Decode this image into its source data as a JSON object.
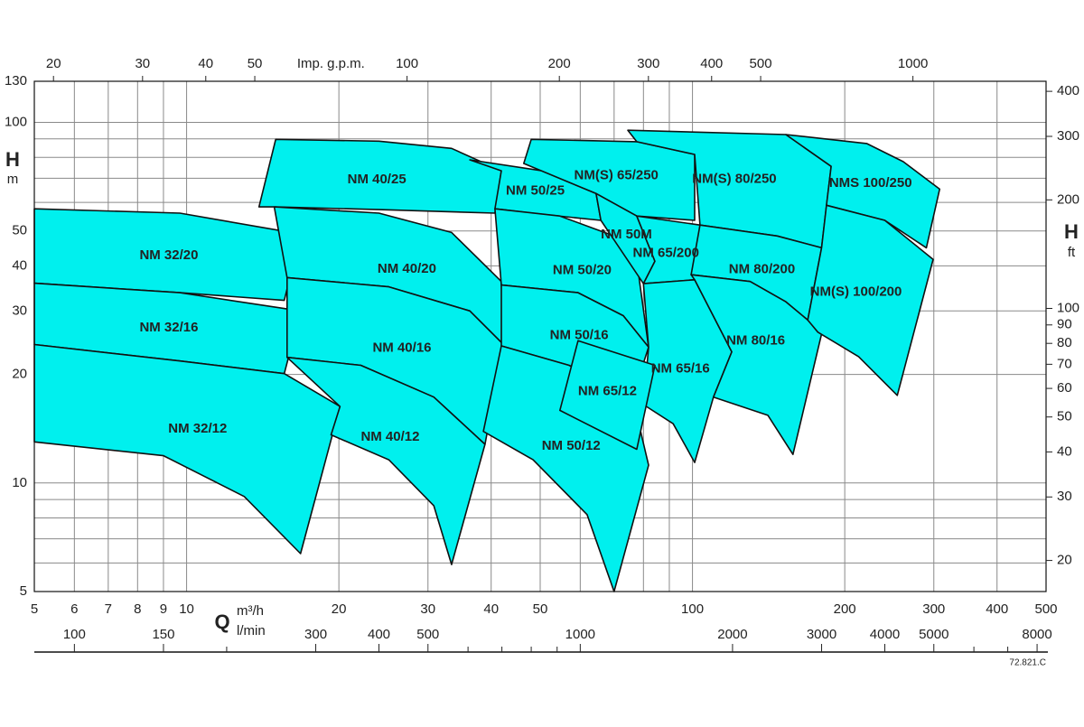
{
  "chart_data": {
    "type": "region",
    "x_title": "Q",
    "x_unit": "m³/h",
    "x2_unit": "l/min",
    "x3_title": "Imp. g.p.m.",
    "y_title": "H",
    "y_unit": "m",
    "y2_title": "H",
    "y2_unit": "ft",
    "code": "72.821.C",
    "xscale": "log",
    "yscale": "log",
    "grid": true,
    "color": "#00f0ee",
    "xlim": [
      5,
      500
    ],
    "xticks": [
      5,
      6,
      7,
      8,
      9,
      10,
      20,
      30,
      40,
      50,
      100,
      200,
      300,
      400,
      500
    ],
    "xminor": [
      60,
      70,
      80,
      90
    ],
    "ylim": [
      5,
      130
    ],
    "yticks": [
      5,
      10,
      20,
      30,
      40,
      50,
      100,
      130
    ],
    "yminor": [
      6,
      7,
      8,
      9,
      60,
      70,
      80,
      90
    ],
    "x2lim": [
      83.33,
      8333.3
    ],
    "x2ticks": [
      100,
      150,
      300,
      400,
      500,
      1000,
      2000,
      3000,
      4000,
      5000,
      8000
    ],
    "x2minor": [
      200,
      600,
      700,
      800,
      900,
      6000,
      7000
    ],
    "x3lim": [
      18.33,
      1833.1
    ],
    "x3ticks": [
      20,
      30,
      40,
      50,
      100,
      200,
      300,
      400,
      500,
      1000
    ],
    "y2lim": [
      16.4,
      426.5
    ],
    "y2ticks": [
      20,
      30,
      40,
      50,
      60,
      70,
      80,
      90,
      100,
      200,
      300,
      400
    ],
    "series": [
      {
        "name": "NM 32/20",
        "q": [
          5,
          9.7,
          16.8,
          15.6,
          9.7,
          5
        ],
        "h": [
          57.6,
          56,
          49,
          32.1,
          33.7,
          35.8
        ]
      },
      {
        "name": "NM 32/16",
        "q": [
          5,
          9.7,
          16.8,
          15.6,
          9.7,
          5
        ],
        "h": [
          35.8,
          33.7,
          30,
          20.1,
          21.8,
          24.2
        ]
      },
      {
        "name": "NM 32/12",
        "q": [
          5,
          9.7,
          15.6,
          20.1,
          16.8,
          13,
          9,
          5
        ],
        "h": [
          24.2,
          21.8,
          20.1,
          16.3,
          6.37,
          9.17,
          11.9,
          13
        ]
      },
      {
        "name": "NM 40/25",
        "q": [
          15,
          24,
          33.4,
          41.9,
          40.7,
          24,
          14.9,
          13.9
        ],
        "h": [
          89.7,
          88.7,
          84.7,
          73.4,
          56,
          57.3,
          58.3,
          58.3
        ]
      },
      {
        "name": "NM 40/20",
        "q": [
          14.9,
          24,
          33.4,
          41.9,
          42.3,
          36.3,
          25.1,
          15.8
        ],
        "h": [
          58.3,
          56,
          49.5,
          36.2,
          24.2,
          30,
          35,
          37.1
        ]
      },
      {
        "name": "NM 40/16",
        "q": [
          15.8,
          25.1,
          36.3,
          42.3,
          38.9,
          30.8,
          22.1,
          15.8
        ],
        "h": [
          37.1,
          35,
          30,
          24.2,
          12.8,
          17.3,
          21.2,
          22.3
        ]
      },
      {
        "name": "NM 40/12",
        "q": [
          15.8,
          22.1,
          30.8,
          38.9,
          33.4,
          30.8,
          25.1,
          19.3,
          20.1
        ],
        "h": [
          22.3,
          21.2,
          17.3,
          12.8,
          5.94,
          8.65,
          11.6,
          13.6,
          16.3
        ]
      },
      {
        "name": "NM 50/25",
        "q": [
          36.3,
          50.4,
          64.5,
          65.9,
          50.4,
          40.7,
          41.9
        ],
        "h": [
          78.7,
          73.4,
          63.5,
          53.5,
          55.6,
          57.6,
          73.4
        ]
      },
      {
        "name": "NM 50/20",
        "q": [
          40.7,
          54.7,
          70,
          77.6,
          81.9,
          73,
          59.4,
          41.9
        ],
        "h": [
          57.6,
          55,
          48.4,
          41.2,
          23.8,
          29.1,
          33.7,
          35.4
        ]
      },
      {
        "name": "NM 50/16",
        "q": [
          41.9,
          59.4,
          73,
          81.9,
          76.1,
          57,
          41.9
        ],
        "h": [
          35.4,
          33.7,
          29.1,
          23.8,
          17.3,
          21.2,
          24
        ]
      },
      {
        "name": "NM 50/12",
        "q": [
          41.9,
          57,
          76.1,
          81.9,
          70,
          61.9,
          48.4,
          38.6
        ],
        "h": [
          24,
          21.2,
          17.3,
          11.2,
          5,
          8.17,
          11.6,
          13.9
        ]
      },
      {
        "name": "NM(S) 65/250",
        "q": [
          48,
          77.6,
          101,
          101,
          77.6,
          64.5,
          46.4
        ],
        "h": [
          89.7,
          88.4,
          81.5,
          53.5,
          55,
          63.5,
          76.9
        ]
      },
      {
        "name": "NM 50M",
        "q": [
          64.5,
          77.6,
          84.3,
          80,
          65.9
        ],
        "h": [
          63.5,
          55,
          41.2,
          35.7,
          53.5
        ]
      },
      {
        "name": "NM 65/200",
        "q": [
          77.6,
          103.5,
          101,
          80,
          84.3
        ],
        "h": [
          55,
          51.9,
          36.6,
          35.7,
          41.2
        ]
      },
      {
        "name": "NM 65/16",
        "q": [
          80,
          101,
          119.6,
          110,
          101,
          91.6,
          80,
          81.9
        ],
        "h": [
          35.7,
          36.6,
          23.1,
          17.3,
          11.4,
          14.6,
          16.5,
          23.8
        ]
      },
      {
        "name": "NM 65/12",
        "q": [
          59.4,
          84.3,
          77.6,
          54.7
        ],
        "h": [
          24.8,
          21.2,
          12.4,
          15.9
        ]
      },
      {
        "name": "NM(S) 80/250",
        "q": [
          74.5,
          153,
          188,
          180,
          147,
          103.5,
          101,
          77.6
        ],
        "h": [
          95.1,
          92.5,
          75.5,
          44.9,
          48.4,
          51.9,
          81.5,
          88.4
        ]
      },
      {
        "name": "NM 80/200",
        "q": [
          103.5,
          147,
          180,
          169,
          153,
          130,
          99.4
        ],
        "h": [
          51.9,
          48.4,
          44.9,
          28.3,
          31.8,
          36.2,
          37.8
        ]
      },
      {
        "name": "NM 80/16",
        "q": [
          99.4,
          130,
          153,
          169,
          180,
          158,
          141,
          110,
          119.6,
          101
        ],
        "h": [
          37.8,
          36.2,
          31.8,
          28.3,
          25.9,
          12,
          15.4,
          17.3,
          23.1,
          36.6
        ]
      },
      {
        "name": "NMS 100/250",
        "q": [
          153,
          221,
          261,
          308,
          290,
          240,
          184,
          188
        ],
        "h": [
          92.5,
          87.4,
          77.8,
          65.3,
          44.9,
          53.5,
          58.9,
          75.5
        ]
      },
      {
        "name": "NM(S) 100/200",
        "q": [
          184,
          240,
          299,
          254,
          213,
          177,
          169,
          180
        ],
        "h": [
          58.9,
          53.5,
          41.7,
          17.5,
          22.4,
          26.2,
          28.3,
          44.9
        ]
      }
    ]
  }
}
